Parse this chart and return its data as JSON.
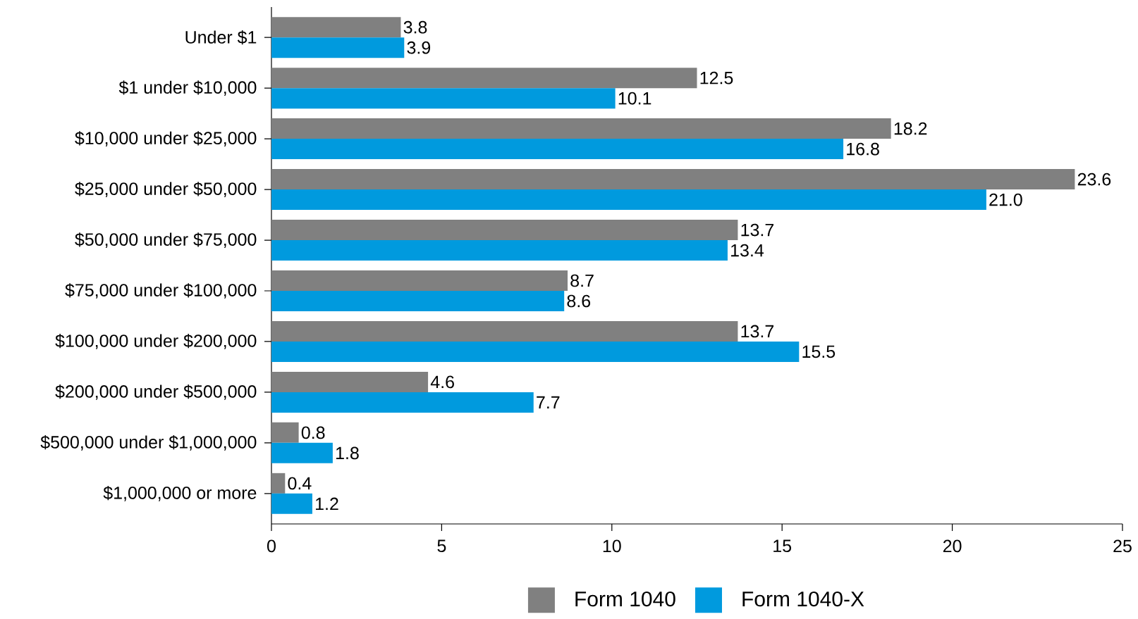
{
  "chart_data": {
    "type": "bar",
    "orientation": "horizontal",
    "categories": [
      "Under $1",
      "$1 under $10,000",
      "$10,000 under $25,000",
      "$25,000 under $50,000",
      "$50,000 under $75,000",
      "$75,000 under $100,000",
      "$100,000 under $200,000",
      "$200,000 under $500,000",
      "$500,000 under $1,000,000",
      "$1,000,000 or more"
    ],
    "series": [
      {
        "name": "Form 1040",
        "color": "#808080",
        "values": [
          3.8,
          12.5,
          18.2,
          23.6,
          13.7,
          8.7,
          13.7,
          4.6,
          0.8,
          0.4
        ],
        "value_labels": [
          "3.8",
          "12.5",
          "18.2",
          "23.6",
          "13.7",
          "8.7",
          "13.7",
          "4.6",
          "0.8",
          "0.4"
        ]
      },
      {
        "name": "Form 1040-X",
        "color": "#009ade",
        "values": [
          3.9,
          10.1,
          16.8,
          21.0,
          13.4,
          8.6,
          15.5,
          7.7,
          1.8,
          1.2
        ],
        "value_labels": [
          "3.9",
          "10.1",
          "16.8",
          "21.0",
          "13.4",
          "8.6",
          "15.5",
          "7.7",
          "1.8",
          "1.2"
        ]
      }
    ],
    "xlim": [
      0,
      25
    ],
    "xticks": [
      0,
      5,
      10,
      15,
      20,
      25
    ],
    "grid": false,
    "legend": "bottom"
  }
}
